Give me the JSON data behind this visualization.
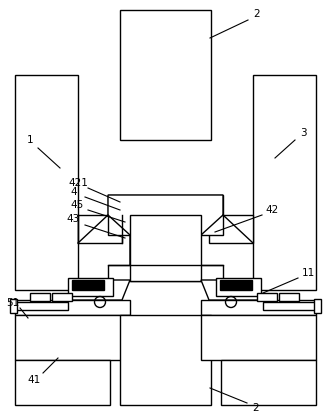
{
  "fig_width": 3.31,
  "fig_height": 4.15,
  "dpi": 100,
  "lw": 1.0,
  "lc": "#000000",
  "bg": "#ffffff"
}
